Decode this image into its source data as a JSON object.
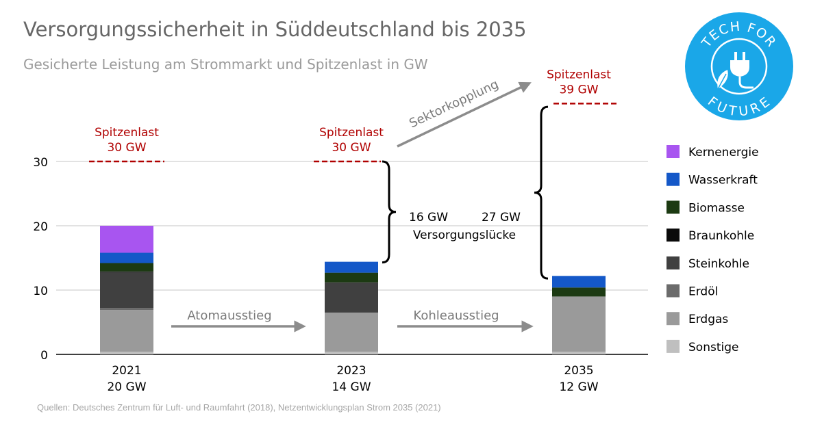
{
  "title": "Versorgungssicherheit in Süddeutschland bis 2035",
  "subtitle": "Gesicherte Leistung am Strommarkt und Spitzenlast in GW",
  "source": "Quellen: Deutsches Zentrum für Luft- und Raumfahrt (2018), Netzentwicklungsplan Strom 2035 (2021)",
  "logo": {
    "text_top": "TECH FOR",
    "text_bottom": "FUTURE",
    "color": "#1aa7e8"
  },
  "annotations": {
    "peak_label": "Spitzenlast",
    "peaks": [
      "30 GW",
      "30 GW",
      "39 GW"
    ],
    "gap_2023": "16 GW",
    "gap_2035": "27 GW",
    "gap_label": "Versorgungslücke",
    "arrow_1": "Atomausstieg",
    "arrow_2": "Kohleausstieg",
    "arrow_3": "Sektorkopplung"
  },
  "colors": {
    "peak_line": "#b00000",
    "axis": "#000000",
    "grid": "#d0d0d0",
    "arrow": "#8c8c8c"
  },
  "chart_data": {
    "type": "bar",
    "stacked": true,
    "categories": [
      "2021",
      "2023",
      "2035"
    ],
    "category_totals": [
      "20 GW",
      "14 GW",
      "12 GW"
    ],
    "series": [
      {
        "name": "Sonstige",
        "color": "#bfbfbf",
        "values": [
          0.4,
          0.4,
          0.4
        ]
      },
      {
        "name": "Erdgas",
        "color": "#9a9a9a",
        "values": [
          6.5,
          6.1,
          8.6
        ]
      },
      {
        "name": "Erdöl",
        "color": "#6b6b6b",
        "values": [
          0.3,
          0.0,
          0.0
        ]
      },
      {
        "name": "Steinkohle",
        "color": "#404040",
        "values": [
          5.6,
          4.7,
          0.0
        ]
      },
      {
        "name": "Braunkohle",
        "color": "#0a0a0a",
        "values": [
          0.1,
          0.0,
          0.0
        ]
      },
      {
        "name": "Biomasse",
        "color": "#1c3a12",
        "values": [
          1.3,
          1.5,
          1.4
        ]
      },
      {
        "name": "Wasserkraft",
        "color": "#1458c8",
        "values": [
          1.6,
          1.7,
          1.8
        ]
      },
      {
        "name": "Kernenergie",
        "color": "#a855f0",
        "values": [
          4.2,
          0.0,
          0.0
        ]
      }
    ],
    "legend_order": [
      "Kernenergie",
      "Wasserkraft",
      "Biomasse",
      "Braunkohle",
      "Steinkohle",
      "Erdöl",
      "Erdgas",
      "Sonstige"
    ],
    "legend_position": "right",
    "peak_load": [
      30,
      30,
      39
    ],
    "ylim": [
      0,
      40
    ],
    "yticks": [
      0,
      10,
      20,
      30
    ],
    "grid": true,
    "xlabel": "",
    "ylabel": ""
  }
}
